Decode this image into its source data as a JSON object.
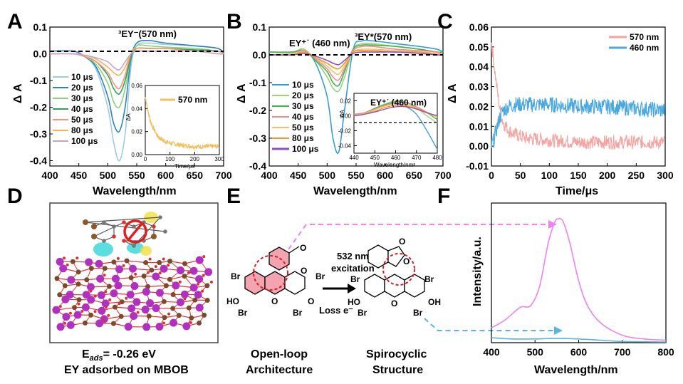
{
  "panels": {
    "a": "A",
    "b": "B",
    "c": "C",
    "d": "D",
    "e": "E",
    "f": "F"
  },
  "colors": {
    "10": "#9ecae1",
    "20": "#3182bd",
    "30": "#8fd175",
    "40": "#2ca25f",
    "50": "#fc9272",
    "80": "#fdae61",
    "100": "#c2a5cf",
    "b10": "#3a9ad9",
    "b20": "#9bd27a",
    "b30": "#3fb34f",
    "b40": "#f48b8b",
    "b50": "#f5c06a",
    "b80": "#f0992b",
    "b100": "#8e4fbf",
    "c570": "#f4a3a0",
    "c460": "#4aa8e0",
    "inset570": "#f0c060",
    "f_pink": "#ee82ee",
    "f_blue": "#5ab4e0",
    "highlight": "#f4a4b0"
  },
  "chart_data": [
    {
      "id": "A",
      "type": "line",
      "xlabel": "Wavelength/nm",
      "ylabel": "Δ A",
      "xlim": [
        400,
        700
      ],
      "ylim": [
        -0.42,
        0.1
      ],
      "xticks": [
        "400",
        "450",
        "500",
        "550",
        "600",
        "650",
        "700"
      ],
      "yticks": [
        "0.1",
        "0.0",
        "-0.1",
        "-0.2",
        "-0.3",
        "-0.4"
      ],
      "annotation": "³EY⁻(570 nm)",
      "x": [
        400,
        440,
        460,
        480,
        500,
        510,
        520,
        530,
        540,
        550,
        570,
        600,
        650,
        690,
        700
      ],
      "series": [
        {
          "name": "10 μs",
          "values": [
            0.01,
            0.01,
            -0.01,
            -0.06,
            -0.2,
            -0.33,
            -0.4,
            -0.3,
            -0.05,
            0.03,
            0.04,
            0.035,
            0.03,
            0.02,
            0.0
          ]
        },
        {
          "name": "20 μs",
          "values": [
            0.01,
            0.01,
            -0.01,
            -0.05,
            -0.16,
            -0.26,
            -0.29,
            -0.2,
            -0.02,
            0.04,
            0.05,
            0.04,
            0.03,
            0.02,
            0.0
          ]
        },
        {
          "name": "30 μs",
          "values": [
            0.0,
            0.0,
            -0.01,
            -0.04,
            -0.11,
            -0.18,
            -0.2,
            -0.13,
            -0.01,
            0.03,
            0.03,
            0.025,
            0.02,
            0.01,
            0.0
          ]
        },
        {
          "name": "40 μs",
          "values": [
            0.0,
            0.0,
            -0.01,
            -0.03,
            -0.08,
            -0.13,
            -0.15,
            -0.1,
            -0.01,
            0.02,
            0.02,
            0.02,
            0.015,
            0.01,
            0.0
          ]
        },
        {
          "name": "50 μs",
          "values": [
            0.0,
            0.0,
            -0.01,
            -0.03,
            -0.07,
            -0.11,
            -0.13,
            -0.08,
            0.0,
            0.02,
            0.02,
            0.02,
            0.01,
            0.01,
            0.0
          ]
        },
        {
          "name": "80 μs",
          "values": [
            0.0,
            0.0,
            -0.005,
            -0.02,
            -0.05,
            -0.07,
            -0.08,
            -0.05,
            0.0,
            0.01,
            0.01,
            0.01,
            0.01,
            0.0,
            0.0
          ]
        },
        {
          "name": "100 μs",
          "values": [
            0.0,
            0.0,
            -0.005,
            -0.015,
            -0.03,
            -0.05,
            -0.06,
            -0.03,
            0.0,
            0.01,
            0.01,
            0.01,
            0.01,
            0.0,
            0.0
          ]
        }
      ],
      "inset": {
        "series_name": "570 nm",
        "xlabel": "Time/μs",
        "ylabel": "ΔA",
        "xlim": [
          0,
          300
        ],
        "ylim": [
          0,
          0.06
        ],
        "xticks": [
          "0",
          "100",
          "200",
          "300"
        ],
        "yticks": [
          "0.06",
          "0.04",
          "0.02",
          "0.00"
        ],
        "x": [
          0,
          5,
          10,
          20,
          30,
          40,
          50,
          75,
          100,
          150,
          200,
          250,
          300
        ],
        "values": [
          0.05,
          0.045,
          0.038,
          0.03,
          0.024,
          0.02,
          0.016,
          0.012,
          0.01,
          0.008,
          0.007,
          0.007,
          0.007
        ]
      }
    },
    {
      "id": "B",
      "type": "line",
      "xlabel": "Wavelength/nm",
      "ylabel": "Δ A",
      "xlim": [
        400,
        700
      ],
      "ylim": [
        -0.4,
        0.1
      ],
      "xticks": [
        "400",
        "450",
        "500",
        "550",
        "600",
        "650",
        "700"
      ],
      "yticks": [
        "0.1",
        "0.0",
        "-0.1",
        "-0.2",
        "-0.3",
        "-0.4"
      ],
      "annotations": [
        "EY⁺˙ (460 nm)",
        "³EY*(570 nm)"
      ],
      "x": [
        400,
        440,
        460,
        480,
        500,
        510,
        520,
        530,
        545,
        560,
        580,
        620,
        660,
        690,
        700
      ],
      "series": [
        {
          "name": "10 μs",
          "values": [
            0.01,
            0.01,
            0.02,
            -0.03,
            -0.15,
            -0.3,
            -0.35,
            -0.2,
            0.02,
            0.05,
            0.05,
            0.04,
            0.03,
            0.02,
            0.01
          ]
        },
        {
          "name": "20 μs",
          "values": [
            0.01,
            0.01,
            0.02,
            -0.02,
            -0.08,
            -0.12,
            -0.13,
            -0.08,
            0.02,
            0.04,
            0.04,
            0.03,
            0.02,
            0.01,
            0.01
          ]
        },
        {
          "name": "30 μs",
          "values": [
            0.01,
            0.01,
            0.015,
            -0.02,
            -0.06,
            -0.1,
            -0.11,
            -0.06,
            0.02,
            0.035,
            0.035,
            0.03,
            0.02,
            0.01,
            0.01
          ]
        },
        {
          "name": "40 μs",
          "values": [
            0.0,
            0.005,
            0.015,
            -0.015,
            -0.05,
            -0.08,
            -0.09,
            -0.05,
            0.015,
            0.03,
            0.03,
            0.02,
            0.015,
            0.01,
            0.0
          ]
        },
        {
          "name": "50 μs",
          "values": [
            0.0,
            0.005,
            0.01,
            -0.01,
            -0.04,
            -0.06,
            -0.07,
            -0.04,
            0.01,
            0.02,
            0.02,
            0.015,
            0.01,
            0.005,
            0.0
          ]
        },
        {
          "name": "80 μs",
          "values": [
            0.0,
            0.0,
            0.01,
            -0.01,
            -0.03,
            -0.045,
            -0.05,
            -0.03,
            0.01,
            0.015,
            0.015,
            0.01,
            0.01,
            0.0,
            0.0
          ]
        },
        {
          "name": "100 μs",
          "values": [
            0.0,
            0.0,
            0.005,
            -0.005,
            -0.02,
            -0.03,
            -0.035,
            -0.02,
            0.005,
            0.01,
            0.01,
            0.01,
            0.005,
            0.0,
            0.0
          ]
        }
      ],
      "inset": {
        "title": "EY⁺˙ (460 nm)",
        "xlabel": "Wavelength/nm",
        "ylabel": "ΔA",
        "xlim": [
          440,
          480
        ],
        "ylim": [
          -0.05,
          0.03
        ],
        "xticks": [
          "440",
          "450",
          "460",
          "470",
          "480"
        ],
        "yticks": [
          "0.02",
          "0.00",
          "-0.02",
          "-0.04"
        ],
        "x": [
          440,
          445,
          450,
          455,
          460,
          465,
          470,
          475,
          480
        ],
        "series": [
          {
            "values": [
              0.0,
              0.002,
              0.008,
              0.014,
              0.016,
              0.012,
              0.002,
              -0.02,
              -0.045
            ]
          },
          {
            "values": [
              0.002,
              0.004,
              0.01,
              0.016,
              0.02,
              0.018,
              0.01,
              0.0,
              -0.01
            ]
          },
          {
            "values": [
              0.002,
              0.004,
              0.01,
              0.015,
              0.019,
              0.018,
              0.012,
              0.004,
              -0.005
            ]
          },
          {
            "values": [
              0.002,
              0.004,
              0.009,
              0.014,
              0.018,
              0.017,
              0.012,
              0.005,
              -0.002
            ]
          },
          {
            "values": [
              0.0,
              0.003,
              0.008,
              0.013,
              0.016,
              0.015,
              0.01,
              0.004,
              -0.002
            ]
          },
          {
            "values": [
              0.0,
              0.002,
              0.006,
              0.011,
              0.014,
              0.013,
              0.01,
              0.004,
              0.0
            ]
          },
          {
            "values": [
              0.0,
              0.002,
              0.005,
              0.009,
              0.012,
              0.012,
              0.009,
              0.004,
              0.0
            ]
          }
        ]
      }
    },
    {
      "id": "C",
      "type": "line",
      "xlabel": "Time/μs",
      "ylabel": "Δ A",
      "xlim": [
        0,
        300
      ],
      "ylim": [
        -0.01,
        0.06
      ],
      "xticks": [
        "0",
        "50",
        "100",
        "150",
        "200",
        "250",
        "300"
      ],
      "yticks": [
        "0.06",
        "0.05",
        "0.04",
        "0.03",
        "0.02",
        "0.01",
        "0.00",
        "-0.01"
      ],
      "series": [
        {
          "name": "570 nm",
          "x": [
            0,
            5,
            10,
            15,
            20,
            30,
            40,
            60,
            100,
            150,
            200,
            250,
            300
          ],
          "values": [
            0.052,
            0.04,
            0.028,
            0.018,
            0.012,
            0.008,
            0.006,
            0.004,
            0.003,
            0.002,
            0.002,
            0.002,
            0.002
          ]
        },
        {
          "name": "460 nm",
          "x": [
            0,
            5,
            10,
            15,
            20,
            30,
            40,
            60,
            100,
            150,
            200,
            250,
            300
          ],
          "values": [
            0.0,
            0.004,
            0.01,
            0.015,
            0.018,
            0.02,
            0.021,
            0.021,
            0.021,
            0.02,
            0.02,
            0.019,
            0.018
          ]
        }
      ]
    },
    {
      "id": "F",
      "type": "line",
      "xlabel": "Wavelength/nm",
      "ylabel": "Intensity/a.u.",
      "xlim": [
        400,
        800
      ],
      "xticks": [
        "400",
        "500",
        "600",
        "700",
        "800"
      ],
      "series": [
        {
          "x": [
            400,
            430,
            460,
            470,
            490,
            510,
            530,
            545,
            555,
            565,
            580,
            600,
            620,
            650,
            700,
            750,
            800
          ],
          "values": [
            0.12,
            0.18,
            0.27,
            0.29,
            0.3,
            0.45,
            0.8,
            0.97,
            1.0,
            0.97,
            0.8,
            0.5,
            0.3,
            0.16,
            0.06,
            0.03,
            0.02
          ]
        },
        {
          "x": [
            400,
            450,
            500,
            550,
            600,
            650,
            700,
            800
          ],
          "values": [
            0.04,
            0.03,
            0.03,
            0.035,
            0.03,
            0.02,
            0.01,
            0.005
          ]
        }
      ]
    }
  ],
  "text": {
    "panel_c_legend_570": "570 nm",
    "panel_c_legend_460": "460 nm",
    "panel_a_inset_legend": "570 nm",
    "panel_b_annot_ey460": "EY⁺˙ (460 nm)",
    "panel_b_annot_3ey": "³EY*(570 nm)",
    "panel_a_annot": "³EY⁻(570 nm)",
    "panel_b_inset_title": "EY⁺˙ (460 nm)",
    "d_energy": "E",
    "d_energy_sub": "ads",
    "d_energy_val": "= -0.26 eV",
    "d_caption": "EY adsorbed on MBOB",
    "e_excitation_1": "532 nm",
    "e_excitation_2": "excitation",
    "e_loss": "Loss e⁻",
    "e_open_1": "Open-loop",
    "e_open_2": "Architecture",
    "e_spiro_1": "Spirocyclic",
    "e_spiro_2": "Structure",
    "br": "Br",
    "ho": "HO",
    "oh": "OH",
    "o": "O"
  }
}
